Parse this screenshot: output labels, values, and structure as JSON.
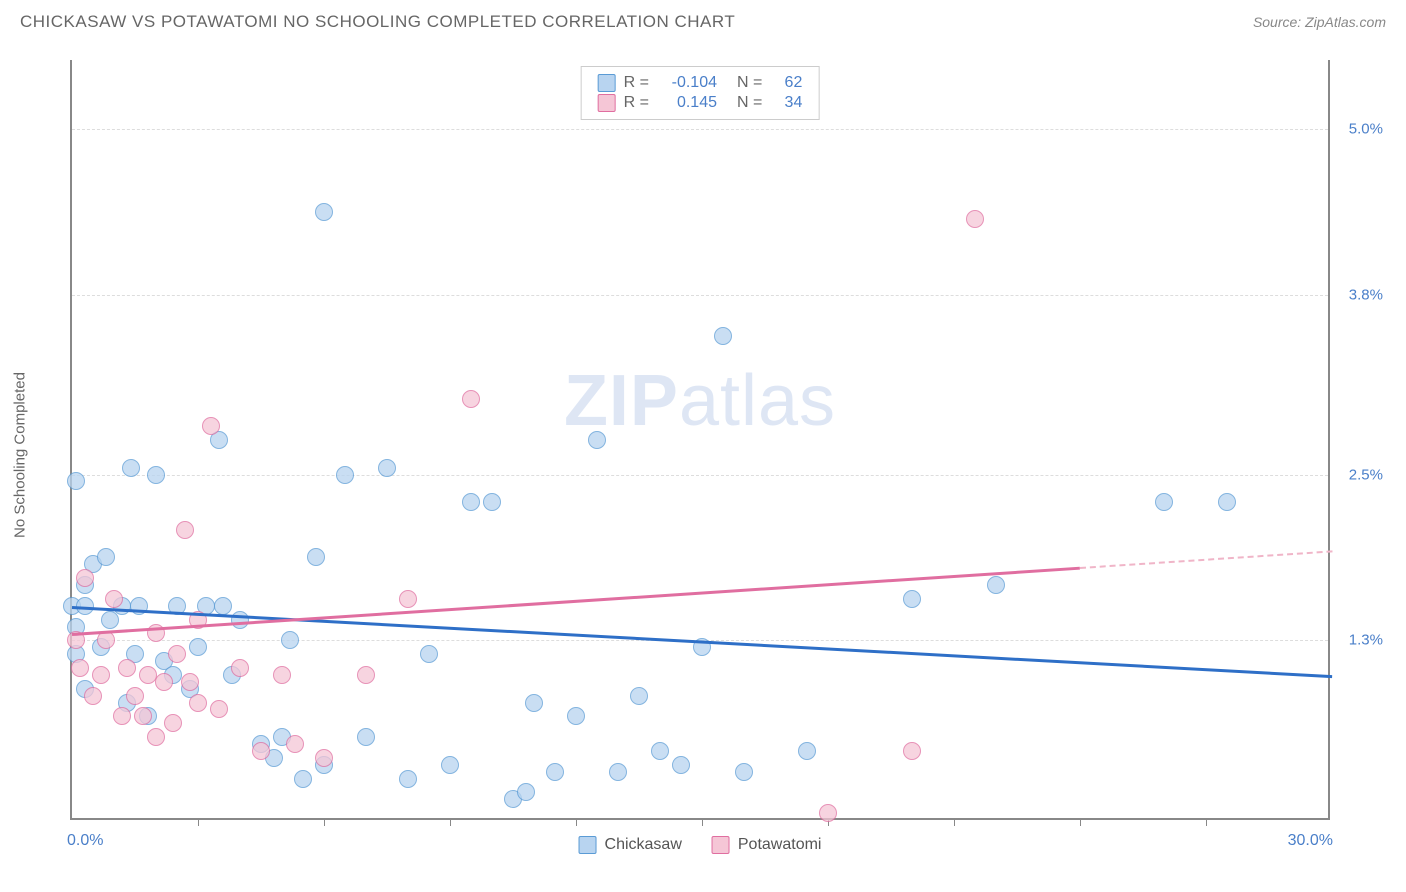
{
  "header": {
    "title": "CHICKASAW VS POTAWATOMI NO SCHOOLING COMPLETED CORRELATION CHART",
    "source_label": "Source:",
    "source_name": "ZipAtlas.com"
  },
  "chart": {
    "type": "scatter",
    "yaxis_label": "No Schooling Completed",
    "watermark_bold": "ZIP",
    "watermark_rest": "atlas",
    "xlim": [
      0,
      30
    ],
    "ylim": [
      0,
      5.5
    ],
    "x_start_label": "0.0%",
    "x_end_label": "30.0%",
    "x_ticks": [
      3,
      6,
      9,
      12,
      15,
      18,
      21,
      24,
      27
    ],
    "y_gridlines": [
      1.3,
      2.5,
      3.8,
      5.0
    ],
    "y_tick_labels": [
      "1.3%",
      "2.5%",
      "3.8%",
      "5.0%"
    ],
    "background_color": "#ffffff",
    "grid_color": "#dddddd",
    "axis_color": "#888888",
    "series": [
      {
        "name": "Chickasaw",
        "color_fill": "#b8d4f0",
        "color_stroke": "#5a9bd5",
        "R": "-0.104",
        "N": "62",
        "marker_radius": 9,
        "points": [
          [
            0.0,
            1.55
          ],
          [
            0.1,
            1.4
          ],
          [
            0.1,
            2.45
          ],
          [
            0.1,
            1.2
          ],
          [
            0.3,
            1.7
          ],
          [
            0.3,
            0.95
          ],
          [
            0.3,
            1.55
          ],
          [
            0.5,
            1.85
          ],
          [
            0.7,
            1.25
          ],
          [
            0.8,
            1.9
          ],
          [
            0.9,
            1.45
          ],
          [
            1.2,
            1.55
          ],
          [
            1.3,
            0.85
          ],
          [
            1.4,
            2.55
          ],
          [
            1.5,
            1.2
          ],
          [
            1.6,
            1.55
          ],
          [
            1.8,
            0.75
          ],
          [
            2.0,
            2.5
          ],
          [
            2.2,
            1.15
          ],
          [
            2.4,
            1.05
          ],
          [
            2.5,
            1.55
          ],
          [
            2.8,
            0.95
          ],
          [
            3.0,
            1.25
          ],
          [
            3.2,
            1.55
          ],
          [
            3.5,
            2.75
          ],
          [
            3.6,
            1.55
          ],
          [
            3.8,
            1.05
          ],
          [
            4.0,
            1.45
          ],
          [
            4.5,
            0.55
          ],
          [
            4.8,
            0.45
          ],
          [
            5.0,
            0.6
          ],
          [
            5.2,
            1.3
          ],
          [
            5.5,
            0.3
          ],
          [
            5.8,
            1.9
          ],
          [
            6.0,
            0.4
          ],
          [
            6.0,
            4.4
          ],
          [
            6.5,
            2.5
          ],
          [
            7.0,
            0.6
          ],
          [
            7.5,
            2.55
          ],
          [
            8.0,
            0.3
          ],
          [
            8.5,
            1.2
          ],
          [
            9.0,
            0.4
          ],
          [
            9.5,
            2.3
          ],
          [
            10.0,
            2.3
          ],
          [
            10.5,
            0.15
          ],
          [
            10.8,
            0.2
          ],
          [
            11.0,
            0.85
          ],
          [
            11.5,
            0.35
          ],
          [
            12.0,
            0.75
          ],
          [
            12.5,
            2.75
          ],
          [
            13.0,
            0.35
          ],
          [
            13.5,
            0.9
          ],
          [
            14.0,
            0.5
          ],
          [
            14.5,
            0.4
          ],
          [
            15.0,
            1.25
          ],
          [
            15.5,
            3.5
          ],
          [
            16.0,
            0.35
          ],
          [
            17.5,
            0.5
          ],
          [
            20.0,
            1.6
          ],
          [
            22.0,
            1.7
          ],
          [
            26.0,
            2.3
          ],
          [
            27.5,
            2.3
          ]
        ],
        "trend": {
          "y_at_x0": 1.55,
          "y_at_xmax": 1.05,
          "color": "#2e6fc7"
        }
      },
      {
        "name": "Potawatomi",
        "color_fill": "#f5c6d6",
        "color_stroke": "#e06ea0",
        "R": "0.145",
        "N": "34",
        "marker_radius": 9,
        "points": [
          [
            0.1,
            1.3
          ],
          [
            0.2,
            1.1
          ],
          [
            0.3,
            1.75
          ],
          [
            0.5,
            0.9
          ],
          [
            0.7,
            1.05
          ],
          [
            0.8,
            1.3
          ],
          [
            1.0,
            1.6
          ],
          [
            1.2,
            0.75
          ],
          [
            1.3,
            1.1
          ],
          [
            1.5,
            0.9
          ],
          [
            1.7,
            0.75
          ],
          [
            1.8,
            1.05
          ],
          [
            2.0,
            1.35
          ],
          [
            2.0,
            0.6
          ],
          [
            2.2,
            1.0
          ],
          [
            2.4,
            0.7
          ],
          [
            2.5,
            1.2
          ],
          [
            2.7,
            2.1
          ],
          [
            2.8,
            1.0
          ],
          [
            3.0,
            1.45
          ],
          [
            3.0,
            0.85
          ],
          [
            3.3,
            2.85
          ],
          [
            3.5,
            0.8
          ],
          [
            4.0,
            1.1
          ],
          [
            4.5,
            0.5
          ],
          [
            5.0,
            1.05
          ],
          [
            5.3,
            0.55
          ],
          [
            6.0,
            0.45
          ],
          [
            7.0,
            1.05
          ],
          [
            8.0,
            1.6
          ],
          [
            9.5,
            3.05
          ],
          [
            18.0,
            0.05
          ],
          [
            20.0,
            0.5
          ],
          [
            21.5,
            4.35
          ]
        ],
        "trend": {
          "y_at_x0": 1.35,
          "y_at_xmax": 1.95,
          "color": "#e06ea0",
          "solid_until_x": 24,
          "dash_color": "#f0b5c8"
        }
      }
    ],
    "legend_top": {
      "r_label": "R =",
      "n_label": "N ="
    },
    "legend_bottom": {
      "items": [
        "Chickasaw",
        "Potawatomi"
      ]
    }
  }
}
